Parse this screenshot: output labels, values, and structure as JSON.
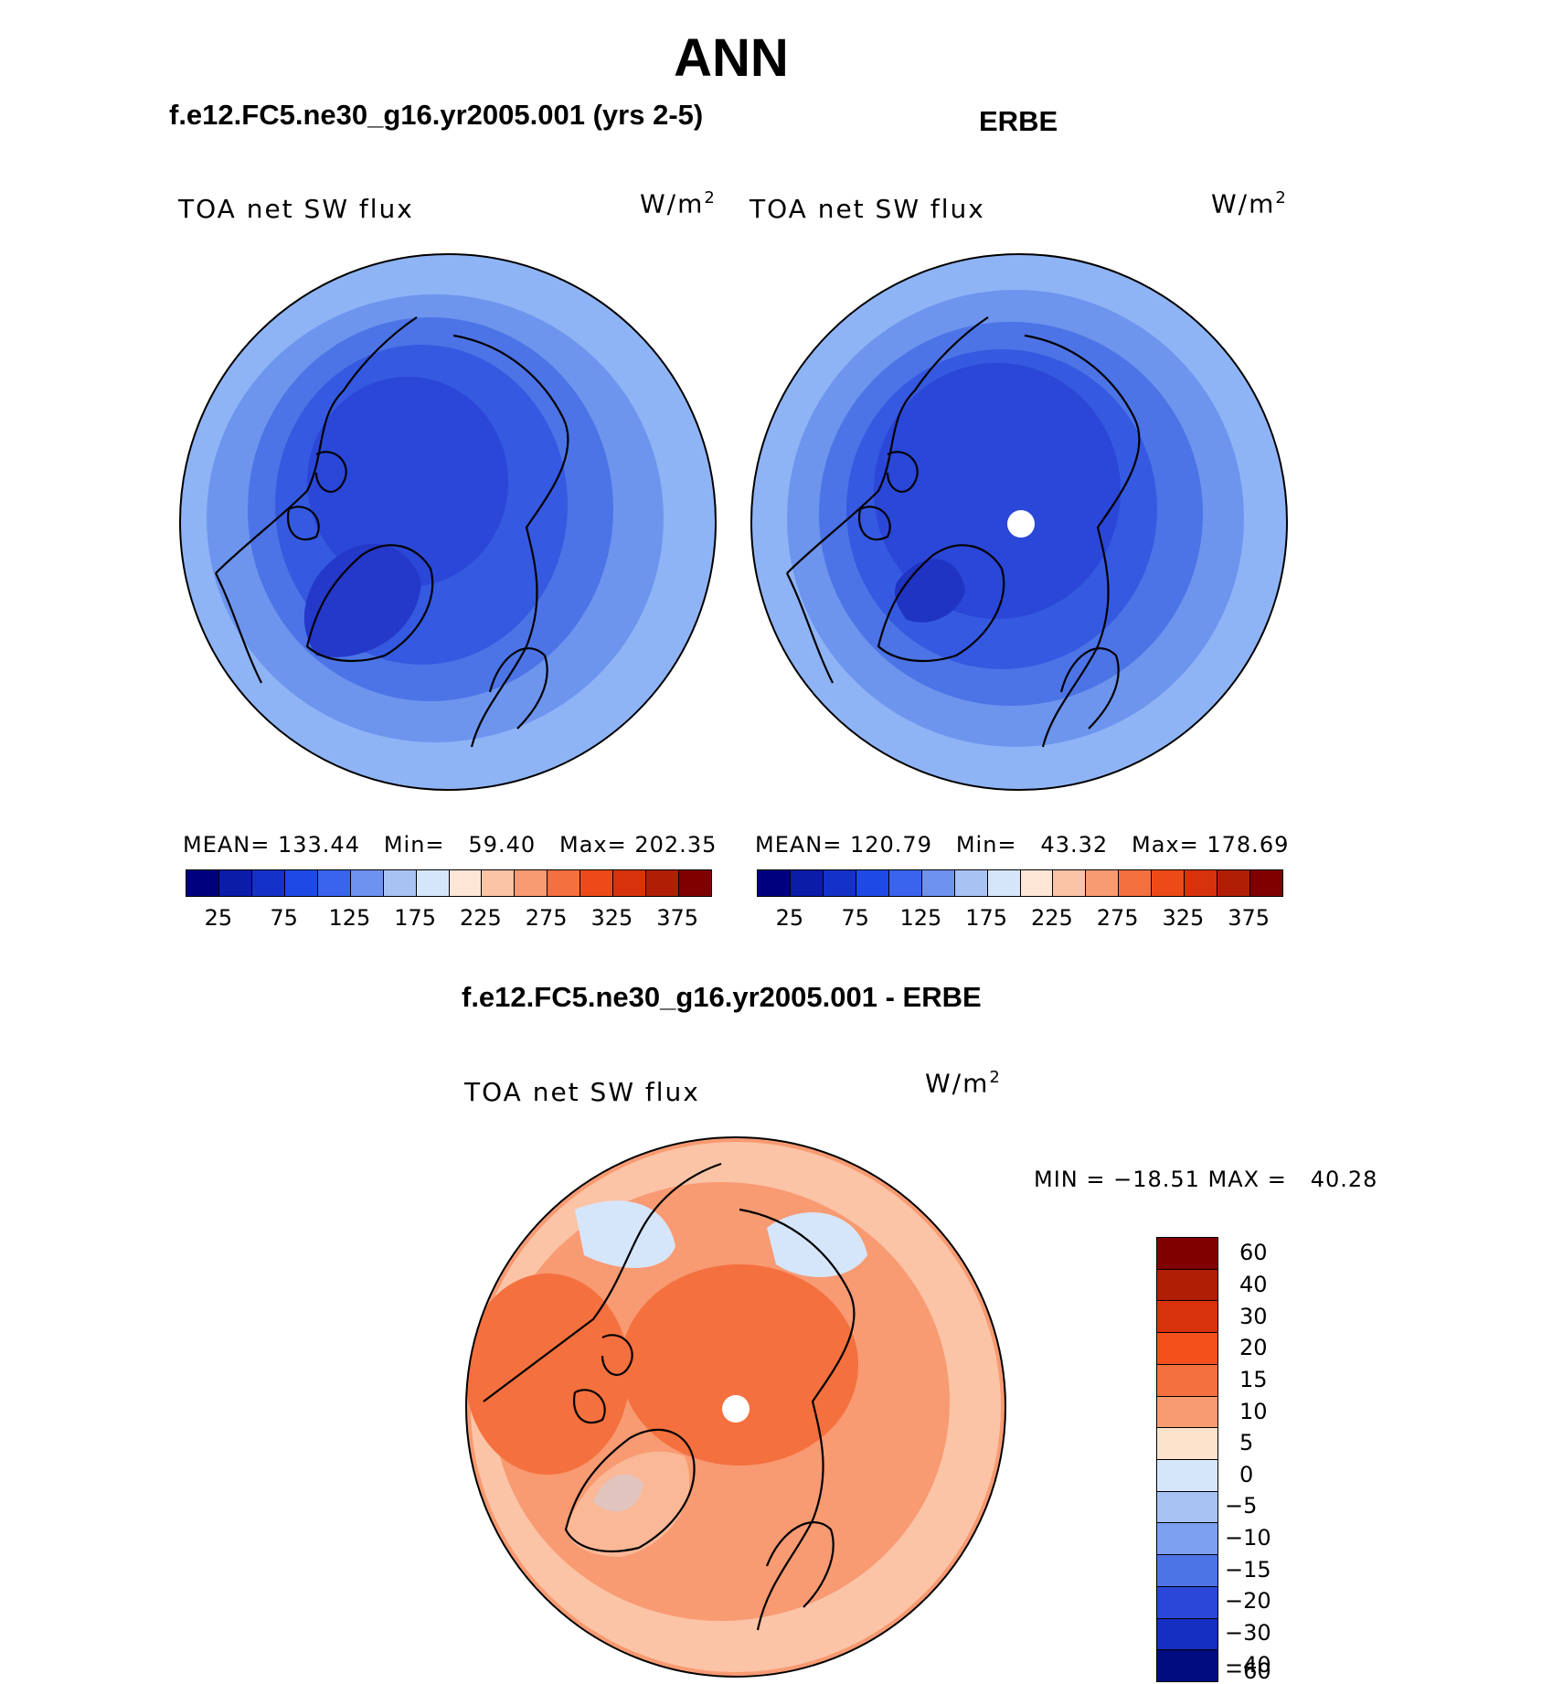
{
  "title": "ANN",
  "panels": [
    {
      "subtitle": "f.e12.FC5.ne30_g16.yr2005.001 (yrs 2-5)",
      "label": "TOA net SW flux",
      "units": "W/m",
      "units_sup": "2",
      "stats": "MEAN= 133.44   Min=   59.40   Max= 202.35",
      "colors": [
        "#8fb4f6",
        "#6d95ee",
        "#4c74e6",
        "#3559e0",
        "#2a47d8",
        "#2438c9"
      ]
    },
    {
      "subtitle": "ERBE",
      "label": "TOA net SW flux",
      "units": "W/m",
      "units_sup": "2",
      "stats": "MEAN= 120.79   Min=   43.32   Max= 178.69",
      "colors": [
        "#8fb4f6",
        "#6d95ee",
        "#4c74e6",
        "#3559e0",
        "#2a47d8",
        "#1f34c2"
      ]
    }
  ],
  "diff": {
    "subtitle": "f.e12.FC5.ne30_g16.yr2005.001 - ERBE",
    "label": "TOA net SW flux",
    "units": "W/m",
    "units_sup": "2",
    "minmax": "MIN = −18.51 MAX =   40.28"
  },
  "colorbar_abs": {
    "colors": [
      "#00007f",
      "#0a1ca8",
      "#1431c9",
      "#1f49e6",
      "#3a64ee",
      "#6e92f0",
      "#a8c2f4",
      "#d6e6fa",
      "#fde6d6",
      "#fbc4a6",
      "#f89a72",
      "#f4703e",
      "#ee4a18",
      "#d8320c",
      "#b01e06",
      "#800000"
    ],
    "ticks": [
      "25",
      "75",
      "125",
      "175",
      "225",
      "275",
      "325",
      "375"
    ]
  },
  "colorbar_diff": {
    "colors": [
      "#800000",
      "#b01e06",
      "#d8320c",
      "#f4501c",
      "#f4703e",
      "#f89a72",
      "#fde2cc",
      "#d6e6fa",
      "#a8c2f4",
      "#7da0f0",
      "#4c74e6",
      "#2a47d8",
      "#142ec0",
      "#000c80"
    ],
    "ticks": [
      "60",
      "40",
      "30",
      "20",
      "15",
      "10",
      "5",
      "0",
      "−5",
      "−10",
      "−15",
      "−20",
      "−30",
      "−40",
      "−60"
    ]
  }
}
